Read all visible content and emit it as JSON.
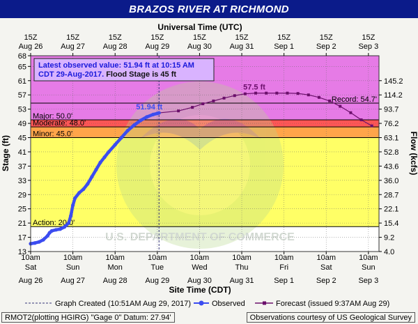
{
  "title": "BRAZOS RIVER AT RICHMOND",
  "footer": {
    "left": "RMOT2(plotting HGIRG) \"Gage 0\" Datum: 27.94'",
    "right": "Observations courtesy of US Geological Survey"
  },
  "watermark": "U.S. DEPARTMENT OF COMMERCE",
  "chart_data": {
    "type": "line",
    "top_axis_title": "Universal Time (UTC)",
    "bottom_axis_title": "Site Time (CDT)",
    "ylabel": "Stage (ft)",
    "ylabel_right": "Flow (kcfs)",
    "ylim": [
      13,
      68
    ],
    "y_ticks": [
      "13",
      "17",
      "21",
      "25",
      "29",
      "33",
      "37",
      "41",
      "45",
      "49",
      "53",
      "57",
      "61",
      "65",
      "68"
    ],
    "y_tick_values": [
      13,
      17,
      21,
      25,
      29,
      33,
      37,
      41,
      45,
      49,
      53,
      57,
      61,
      65,
      68
    ],
    "flow_ticks": [
      {
        "stage": 13,
        "label": "4.0"
      },
      {
        "stage": 17,
        "label": "9.2"
      },
      {
        "stage": 21,
        "label": "15.4"
      },
      {
        "stage": 25,
        "label": "22.1"
      },
      {
        "stage": 29,
        "label": "28.7"
      },
      {
        "stage": 33,
        "label": "36.0"
      },
      {
        "stage": 37,
        "label": "43.6"
      },
      {
        "stage": 41,
        "label": "52.8"
      },
      {
        "stage": 45,
        "label": "63.1"
      },
      {
        "stage": 49,
        "label": "76.2"
      },
      {
        "stage": 53,
        "label": "93.7"
      },
      {
        "stage": 57,
        "label": "114.2"
      },
      {
        "stage": 61,
        "label": "145.2"
      }
    ],
    "x_top_ticks": [
      {
        "day": 0,
        "line1": "15Z",
        "line2": "Aug 26"
      },
      {
        "day": 1,
        "line1": "15Z",
        "line2": "Aug 27"
      },
      {
        "day": 2,
        "line1": "15Z",
        "line2": "Aug 28"
      },
      {
        "day": 3,
        "line1": "15Z",
        "line2": "Aug 29"
      },
      {
        "day": 4,
        "line1": "15Z",
        "line2": "Aug 30"
      },
      {
        "day": 5,
        "line1": "15Z",
        "line2": "Aug 31"
      },
      {
        "day": 6,
        "line1": "15Z",
        "line2": "Sep 1"
      },
      {
        "day": 7,
        "line1": "15Z",
        "line2": "Sep 2"
      },
      {
        "day": 8,
        "line1": "15Z",
        "line2": "Sep 3"
      }
    ],
    "x_bottom_ticks": [
      {
        "day": 0,
        "time": "10am",
        "dow": "Sat",
        "date": "Aug 26"
      },
      {
        "day": 1,
        "time": "10am",
        "dow": "Sun",
        "date": "Aug 27"
      },
      {
        "day": 2,
        "time": "10am",
        "dow": "Mon",
        "date": "Aug 28"
      },
      {
        "day": 3,
        "time": "10am",
        "dow": "Tue",
        "date": "Aug 29"
      },
      {
        "day": 4,
        "time": "10am",
        "dow": "Wed",
        "date": "Aug 30"
      },
      {
        "day": 5,
        "time": "10am",
        "dow": "Thu",
        "date": "Aug 31"
      },
      {
        "day": 6,
        "time": "10am",
        "dow": "Fri",
        "date": "Sep 1"
      },
      {
        "day": 7,
        "time": "10am",
        "dow": "Sat",
        "date": "Sep 2"
      },
      {
        "day": 8,
        "time": "10am",
        "dow": "Sun",
        "date": "Sep 3"
      }
    ],
    "bands": [
      {
        "from": 13,
        "to": 20,
        "color": "#ffffff"
      },
      {
        "from": 20,
        "to": 45,
        "color": "#ffff66"
      },
      {
        "from": 45,
        "to": 48,
        "color": "#ffa54a"
      },
      {
        "from": 48,
        "to": 50,
        "color": "#ff5555"
      },
      {
        "from": 50,
        "to": 68,
        "color": "#e67be6"
      }
    ],
    "thresholds": [
      {
        "name": "Major",
        "label": "Major: 50.0'",
        "value": 50.0
      },
      {
        "name": "Moderate",
        "label": "Moderate: 48.0'",
        "value": 48.0
      },
      {
        "name": "Minor",
        "label": "Minor: 45.0'",
        "value": 45.0
      },
      {
        "name": "Action",
        "label": "Action: 20.0'",
        "value": 20.0
      },
      {
        "name": "Record",
        "label": "Record: 54.7'",
        "value": 54.7
      }
    ],
    "observed": {
      "name": "Observed",
      "color": "#3b4cf0",
      "points": [
        [
          0.0,
          15.2
        ],
        [
          0.1,
          15.4
        ],
        [
          0.2,
          15.7
        ],
        [
          0.3,
          16.3
        ],
        [
          0.4,
          17.4
        ],
        [
          0.45,
          18.3
        ],
        [
          0.5,
          18.8
        ],
        [
          0.6,
          19.1
        ],
        [
          0.7,
          19.3
        ],
        [
          0.8,
          19.9
        ],
        [
          0.9,
          21.0
        ],
        [
          0.95,
          23.0
        ],
        [
          1.0,
          26.0
        ],
        [
          1.05,
          28.0
        ],
        [
          1.15,
          29.5
        ],
        [
          1.25,
          30.5
        ],
        [
          1.35,
          32.0
        ],
        [
          1.45,
          34.0
        ],
        [
          1.55,
          36.0
        ],
        [
          1.65,
          38.0
        ],
        [
          1.75,
          39.5
        ],
        [
          1.85,
          41.0
        ],
        [
          2.0,
          43.0
        ],
        [
          2.15,
          45.0
        ],
        [
          2.3,
          47.0
        ],
        [
          2.45,
          48.5
        ],
        [
          2.6,
          49.8
        ],
        [
          2.75,
          50.8
        ],
        [
          2.9,
          51.5
        ],
        [
          3.0,
          51.8
        ],
        [
          3.04,
          51.94
        ]
      ],
      "last_label": "51.94 ft"
    },
    "forecast": {
      "name": "Forecast",
      "color": "#6b0f6b",
      "points": [
        [
          3.04,
          51.94
        ],
        [
          3.5,
          52.5
        ],
        [
          3.83,
          53.5
        ],
        [
          4.08,
          54.5
        ],
        [
          4.33,
          55.3
        ],
        [
          4.58,
          56.1
        ],
        [
          4.83,
          56.8
        ],
        [
          5.08,
          57.3
        ],
        [
          5.33,
          57.5
        ],
        [
          5.58,
          57.5
        ],
        [
          5.83,
          57.5
        ],
        [
          6.08,
          57.5
        ],
        [
          6.33,
          57.4
        ],
        [
          6.58,
          57.0
        ],
        [
          6.83,
          56.3
        ],
        [
          7.08,
          55.3
        ],
        [
          7.33,
          53.8
        ],
        [
          7.58,
          52.0
        ],
        [
          7.83,
          50.0
        ],
        [
          8.08,
          48.3
        ]
      ],
      "peak_label": "57.5 ft",
      "peak_x": 5.33,
      "peak_y": 57.5
    },
    "created_x": 3.04,
    "annotation": {
      "line1": "Latest observed value: 51.94 ft at 10:15 AM",
      "line2a": "CDT 29-Aug-2017.",
      "line2b": " Flood Stage is 45 ft"
    },
    "legend": [
      {
        "kind": "created",
        "label": "Graph Created (10:51AM Aug 29, 2017)"
      },
      {
        "kind": "observed",
        "label": "Observed"
      },
      {
        "kind": "forecast",
        "label": "Forecast (issued 9:37AM Aug 29)"
      }
    ]
  }
}
